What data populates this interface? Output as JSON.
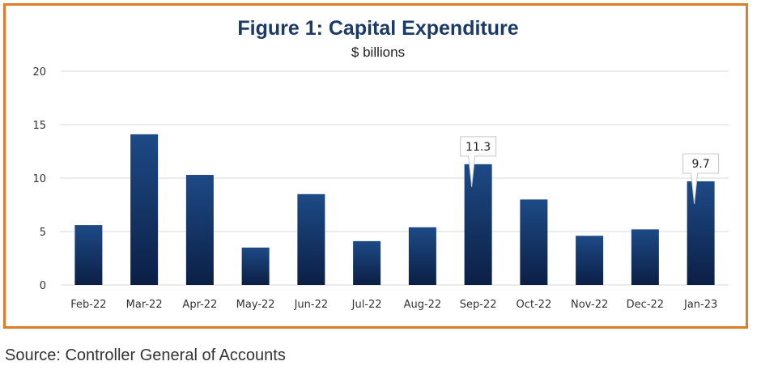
{
  "chart_data": {
    "type": "bar",
    "title": "Figure 1: Capital Expenditure",
    "subtitle": "$ billions",
    "categories": [
      "Feb-22",
      "Mar-22",
      "Apr-22",
      "May-22",
      "Jun-22",
      "Jul-22",
      "Aug-22",
      "Sep-22",
      "Oct-22",
      "Nov-22",
      "Dec-22",
      "Jan-23"
    ],
    "values": [
      5.6,
      14.1,
      10.3,
      3.5,
      8.5,
      4.1,
      5.4,
      11.3,
      8.0,
      4.6,
      5.2,
      9.7
    ],
    "ylim": [
      0,
      20
    ],
    "yticks": [
      0,
      5,
      10,
      15,
      20
    ],
    "grid": true,
    "annotations": [
      {
        "category": "Sep-22",
        "label": "11.3"
      },
      {
        "category": "Jan-23",
        "label": "9.7"
      }
    ],
    "colors": {
      "bar_top": "#1d4a86",
      "bar_bottom": "#0b1f45",
      "border": "#e07b2a",
      "title": "#1b3a66",
      "grid": "#d9d9d9"
    }
  },
  "source": "Source: Controller General of Accounts"
}
